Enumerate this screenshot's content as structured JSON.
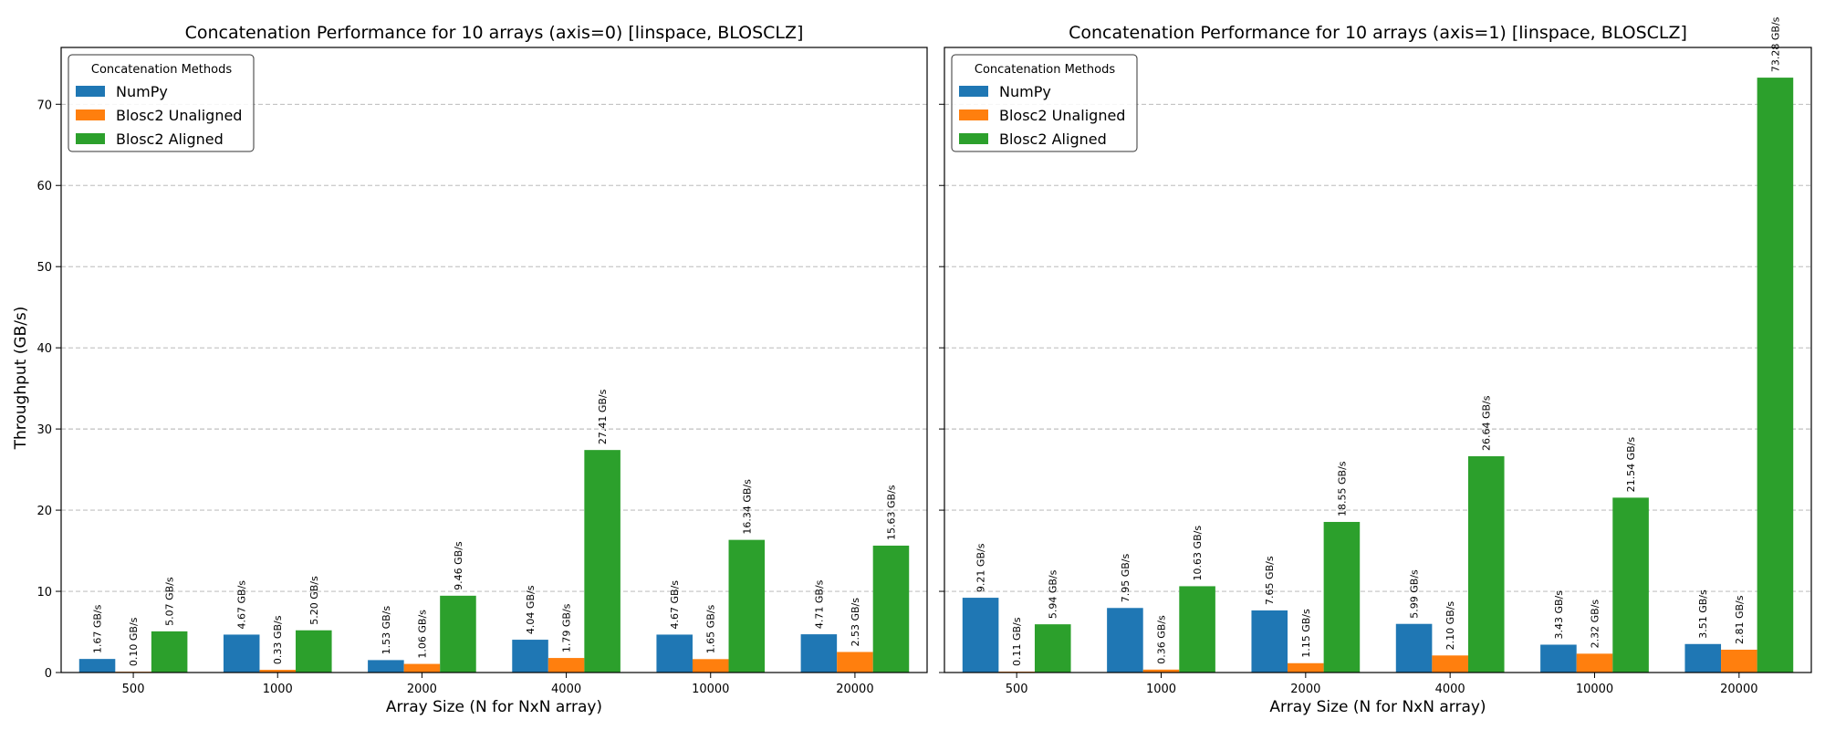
{
  "figure": {
    "shared_ylabel": "Throughput (GB/s)"
  },
  "colors": {
    "numpy": "#1f77b4",
    "unaligned": "#ff7f0e",
    "aligned": "#2ca02c",
    "grid": "#b0b0b0"
  },
  "chart_data": [
    {
      "type": "bar",
      "title": "Concatenation Performance for 10 arrays (axis=0) [linspace, BLOSCLZ]",
      "xlabel": "Array Size (N for NxN array)",
      "ylabel": "Throughput (GB/s)",
      "ylim": [
        0,
        77
      ],
      "yticks": [
        0,
        10,
        20,
        30,
        40,
        50,
        60,
        70
      ],
      "grid": "y-dashed",
      "legend_title": "Concatenation Methods",
      "legend_position": "top-left",
      "categories": [
        "500",
        "1000",
        "2000",
        "4000",
        "10000",
        "20000"
      ],
      "label_suffix": " GB/s",
      "series": [
        {
          "name": "NumPy",
          "values": [
            1.67,
            4.67,
            1.53,
            4.04,
            4.67,
            4.71
          ]
        },
        {
          "name": "Blosc2 Unaligned",
          "values": [
            0.1,
            0.33,
            1.06,
            1.79,
            1.65,
            2.53
          ]
        },
        {
          "name": "Blosc2 Aligned",
          "values": [
            5.07,
            5.2,
            9.46,
            27.41,
            16.34,
            15.63
          ]
        }
      ]
    },
    {
      "type": "bar",
      "title": "Concatenation Performance for 10 arrays (axis=1) [linspace, BLOSCLZ]",
      "xlabel": "Array Size (N for NxN array)",
      "ylabel": "",
      "ylim": [
        0,
        77
      ],
      "yticks": [
        0,
        10,
        20,
        30,
        40,
        50,
        60,
        70
      ],
      "grid": "y-dashed",
      "legend_title": "Concatenation Methods",
      "legend_position": "top-left",
      "categories": [
        "500",
        "1000",
        "2000",
        "4000",
        "10000",
        "20000"
      ],
      "label_suffix": " GB/s",
      "series": [
        {
          "name": "NumPy",
          "values": [
            9.21,
            7.95,
            7.65,
            5.99,
            3.43,
            3.51
          ]
        },
        {
          "name": "Blosc2 Unaligned",
          "values": [
            0.11,
            0.36,
            1.15,
            2.1,
            2.32,
            2.81
          ]
        },
        {
          "name": "Blosc2 Aligned",
          "values": [
            5.94,
            10.63,
            18.55,
            26.64,
            21.54,
            73.28
          ]
        }
      ]
    }
  ]
}
